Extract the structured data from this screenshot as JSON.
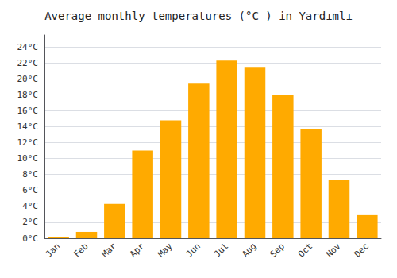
{
  "chart_data": {
    "type": "bar",
    "title": "Average monthly temperatures (°C ) in Yardımlı",
    "categories": [
      "Jan",
      "Feb",
      "Mar",
      "Apr",
      "May",
      "Jun",
      "Jul",
      "Aug",
      "Sep",
      "Oct",
      "Nov",
      "Dec"
    ],
    "values": [
      0.2,
      0.8,
      4.3,
      11.0,
      14.8,
      19.4,
      22.3,
      21.5,
      18.0,
      13.7,
      7.3,
      2.9
    ],
    "color": "#FFAA00",
    "ylim": [
      0,
      25.5
    ],
    "yticks": [
      {
        "value": 0,
        "label": "0°C"
      },
      {
        "value": 2,
        "label": "2°C"
      },
      {
        "value": 4,
        "label": "4°C"
      },
      {
        "value": 6,
        "label": "6°C"
      },
      {
        "value": 8,
        "label": "8°C"
      },
      {
        "value": 10,
        "label": "10°C"
      },
      {
        "value": 12,
        "label": "12°C"
      },
      {
        "value": 14,
        "label": "14°C"
      },
      {
        "value": 16,
        "label": "16°C"
      },
      {
        "value": 18,
        "label": "18°C"
      },
      {
        "value": 20,
        "label": "20°C"
      },
      {
        "value": 22,
        "label": "22°C"
      },
      {
        "value": 24,
        "label": "24°C"
      }
    ],
    "grid": true
  }
}
